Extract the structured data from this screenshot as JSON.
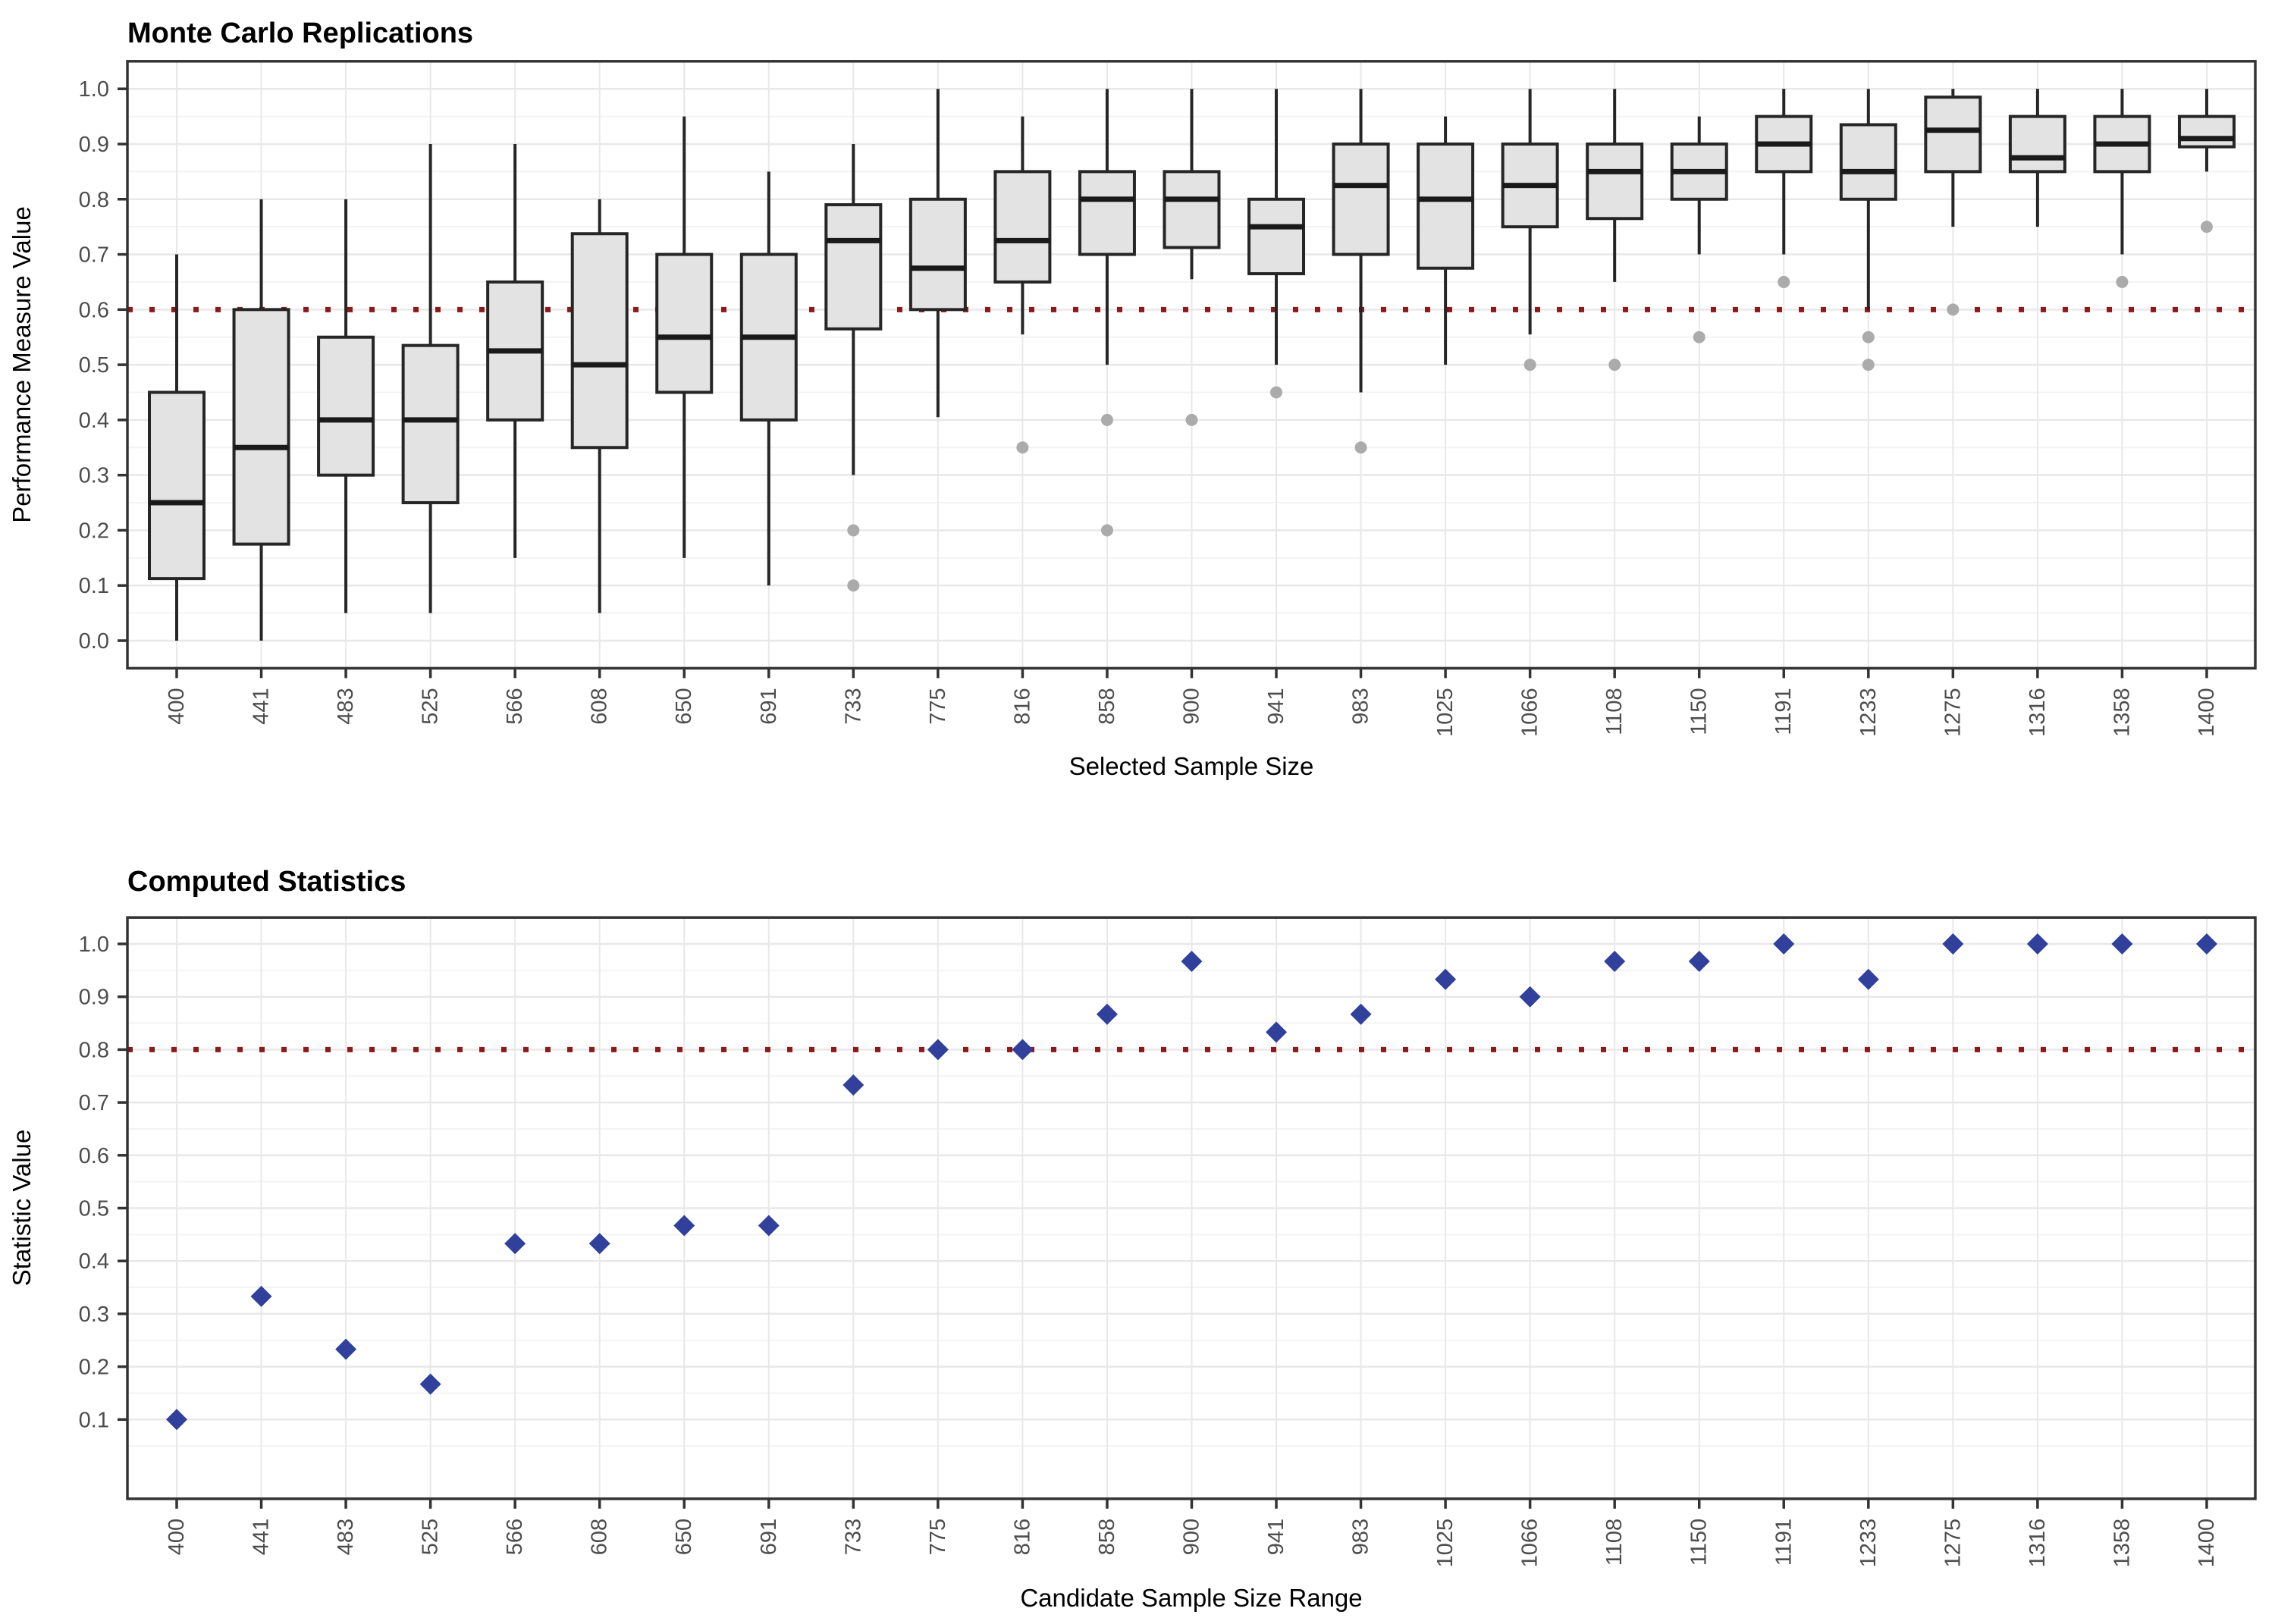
{
  "chart_data": [
    {
      "type": "boxplot",
      "title": "Monte Carlo Replications",
      "xlabel": "Selected Sample Size",
      "ylabel": "Performance Measure Value",
      "categories": [
        "400",
        "441",
        "483",
        "525",
        "566",
        "608",
        "650",
        "691",
        "733",
        "775",
        "816",
        "858",
        "900",
        "941",
        "983",
        "1025",
        "1066",
        "1108",
        "1150",
        "1191",
        "1233",
        "1275",
        "1316",
        "1358",
        "1400"
      ],
      "yticks": [
        0.0,
        0.1,
        0.2,
        0.3,
        0.4,
        0.5,
        0.6,
        0.7,
        0.8,
        0.9,
        1.0
      ],
      "ylim": [
        -0.05,
        1.05
      ],
      "grid": true,
      "refline": 0.6,
      "boxes": [
        {
          "lo": 0.0,
          "q1": 0.1125,
          "med": 0.25,
          "q3": 0.45,
          "hi": 0.7,
          "outliers": []
        },
        {
          "lo": 0.0,
          "q1": 0.175,
          "med": 0.35,
          "q3": 0.6,
          "hi": 0.8,
          "outliers": []
        },
        {
          "lo": 0.05,
          "q1": 0.3,
          "med": 0.4,
          "q3": 0.55,
          "hi": 0.8,
          "outliers": []
        },
        {
          "lo": 0.05,
          "q1": 0.25,
          "med": 0.4,
          "q3": 0.535,
          "hi": 0.9,
          "outliers": []
        },
        {
          "lo": 0.15,
          "q1": 0.4,
          "med": 0.525,
          "q3": 0.65,
          "hi": 0.9,
          "outliers": []
        },
        {
          "lo": 0.05,
          "q1": 0.35,
          "med": 0.5,
          "q3": 0.7375,
          "hi": 0.8,
          "outliers": []
        },
        {
          "lo": 0.15,
          "q1": 0.45,
          "med": 0.55,
          "q3": 0.7,
          "hi": 0.95,
          "outliers": []
        },
        {
          "lo": 0.1,
          "q1": 0.4,
          "med": 0.55,
          "q3": 0.7,
          "hi": 0.85,
          "outliers": []
        },
        {
          "lo": 0.3,
          "q1": 0.565,
          "med": 0.725,
          "q3": 0.79,
          "hi": 0.9,
          "outliers": [
            0.2,
            0.1
          ]
        },
        {
          "lo": 0.405,
          "q1": 0.6,
          "med": 0.675,
          "q3": 0.8,
          "hi": 1.0,
          "outliers": []
        },
        {
          "lo": 0.555,
          "q1": 0.65,
          "med": 0.725,
          "q3": 0.85,
          "hi": 0.95,
          "outliers": [
            0.35
          ]
        },
        {
          "lo": 0.5,
          "q1": 0.7,
          "med": 0.8,
          "q3": 0.85,
          "hi": 1.0,
          "outliers": [
            0.4,
            0.2
          ]
        },
        {
          "lo": 0.655,
          "q1": 0.7125,
          "med": 0.8,
          "q3": 0.85,
          "hi": 1.0,
          "outliers": [
            0.4
          ]
        },
        {
          "lo": 0.5,
          "q1": 0.665,
          "med": 0.75,
          "q3": 0.8,
          "hi": 1.0,
          "outliers": [
            0.45
          ]
        },
        {
          "lo": 0.45,
          "q1": 0.7,
          "med": 0.825,
          "q3": 0.9,
          "hi": 1.0,
          "outliers": [
            0.35
          ]
        },
        {
          "lo": 0.5,
          "q1": 0.675,
          "med": 0.8,
          "q3": 0.9,
          "hi": 0.95,
          "outliers": []
        },
        {
          "lo": 0.555,
          "q1": 0.75,
          "med": 0.825,
          "q3": 0.9,
          "hi": 1.0,
          "outliers": [
            0.5
          ]
        },
        {
          "lo": 0.65,
          "q1": 0.765,
          "med": 0.85,
          "q3": 0.9,
          "hi": 1.0,
          "outliers": [
            0.5
          ]
        },
        {
          "lo": 0.7,
          "q1": 0.8,
          "med": 0.85,
          "q3": 0.9,
          "hi": 0.95,
          "outliers": [
            0.55
          ]
        },
        {
          "lo": 0.7,
          "q1": 0.85,
          "med": 0.9,
          "q3": 0.95,
          "hi": 1.0,
          "outliers": [
            0.65
          ]
        },
        {
          "lo": 0.6,
          "q1": 0.8,
          "med": 0.85,
          "q3": 0.935,
          "hi": 1.0,
          "outliers": [
            0.55,
            0.5
          ]
        },
        {
          "lo": 0.75,
          "q1": 0.85,
          "med": 0.925,
          "q3": 0.985,
          "hi": 1.0,
          "outliers": [
            0.6
          ]
        },
        {
          "lo": 0.75,
          "q1": 0.85,
          "med": 0.875,
          "q3": 0.95,
          "hi": 1.0,
          "outliers": []
        },
        {
          "lo": 0.7,
          "q1": 0.85,
          "med": 0.9,
          "q3": 0.95,
          "hi": 1.0,
          "outliers": [
            0.65
          ]
        },
        {
          "lo": 0.85,
          "q1": 0.895,
          "med": 0.91,
          "q3": 0.95,
          "hi": 1.0,
          "outliers": [
            0.75
          ]
        }
      ]
    },
    {
      "type": "scatter",
      "title": "Computed Statistics",
      "xlabel": "Candidate Sample Size Range",
      "ylabel": "Statistic Value",
      "categories": [
        "400",
        "441",
        "483",
        "525",
        "566",
        "608",
        "650",
        "691",
        "733",
        "775",
        "816",
        "858",
        "900",
        "941",
        "983",
        "1025",
        "1066",
        "1108",
        "1150",
        "1191",
        "1233",
        "1275",
        "1316",
        "1358",
        "1400"
      ],
      "yticks": [
        0.1,
        0.2,
        0.3,
        0.4,
        0.5,
        0.6,
        0.7,
        0.8,
        0.9,
        1.0
      ],
      "ylim": [
        -0.05,
        1.05
      ],
      "grid": true,
      "refline": 0.8,
      "marker": "diamond",
      "values": [
        0.1,
        0.333,
        0.233,
        0.167,
        0.433,
        0.433,
        0.467,
        0.467,
        0.733,
        0.8,
        0.8,
        0.867,
        0.967,
        0.833,
        0.867,
        0.933,
        0.9,
        0.967,
        0.967,
        1.0,
        0.933,
        1.0,
        1.0,
        1.0,
        1.0
      ]
    }
  ],
  "colors": {
    "background": "#FFFFFF",
    "box_fill": "#E3E3E3",
    "box_stroke": "#262626",
    "median": "#1A1A1A",
    "whisker": "#262626",
    "outlier": "#ABABAB",
    "refline": "#8B1A1A",
    "diamond": "#30409B",
    "grid_major": "#E8E8E8",
    "grid_minor": "#F3F3F3",
    "panel_border": "#333333",
    "tick_mark": "#333333",
    "tick_text": "#4D4D4D",
    "title_text": "#000000"
  }
}
